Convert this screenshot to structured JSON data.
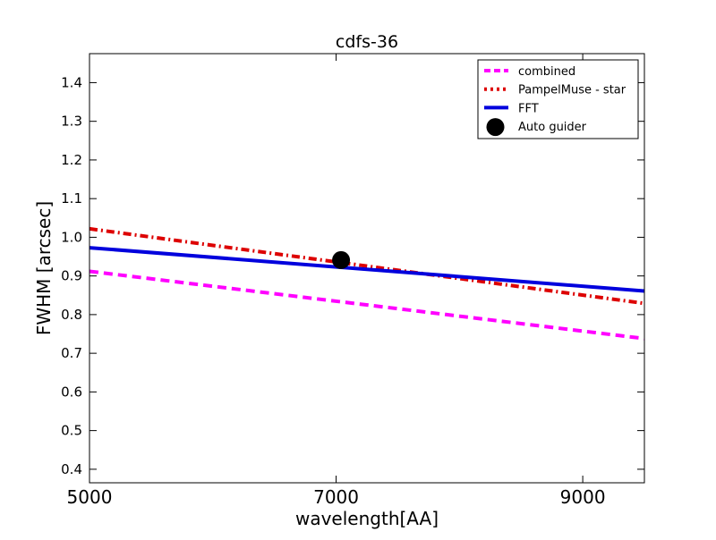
{
  "chart_data": {
    "type": "line",
    "title": "cdfs-36",
    "xlabel": "wavelength[AA]",
    "ylabel": "FWHM [arcsec]",
    "xlim": [
      5000,
      9500
    ],
    "ylim": [
      0.365,
      1.475
    ],
    "xticks": [
      5000,
      7000,
      9000
    ],
    "xtick_labels": [
      "5000",
      "7000",
      "9000"
    ],
    "yticks": [
      0.4,
      0.5,
      0.6,
      0.7,
      0.8,
      0.9,
      1.0,
      1.1,
      1.2,
      1.3,
      1.4
    ],
    "ytick_labels": [
      "0.4",
      "0.5",
      "0.6",
      "0.7",
      "0.8",
      "0.9",
      "1.0",
      "1.1",
      "1.2",
      "1.3",
      "1.4"
    ],
    "grid": false,
    "legend_position": "top-right",
    "series": [
      {
        "name": "combined",
        "kind": "line",
        "style": "dashed",
        "color": "#ff00ff",
        "x": [
          5000,
          9500
        ],
        "y": [
          0.912,
          0.738
        ]
      },
      {
        "name": "PampelMuse - star",
        "kind": "line",
        "style": "dashdot",
        "color": "#dd0000",
        "x": [
          5000,
          9500
        ],
        "y": [
          1.022,
          0.829
        ]
      },
      {
        "name": "FFT",
        "kind": "line",
        "style": "solid",
        "color": "#0000dd",
        "x": [
          5000,
          9500
        ],
        "y": [
          0.973,
          0.861
        ]
      },
      {
        "name": "Auto guider",
        "kind": "point",
        "color": "#000000",
        "x": [
          7040
        ],
        "y": [
          0.941
        ]
      }
    ]
  }
}
